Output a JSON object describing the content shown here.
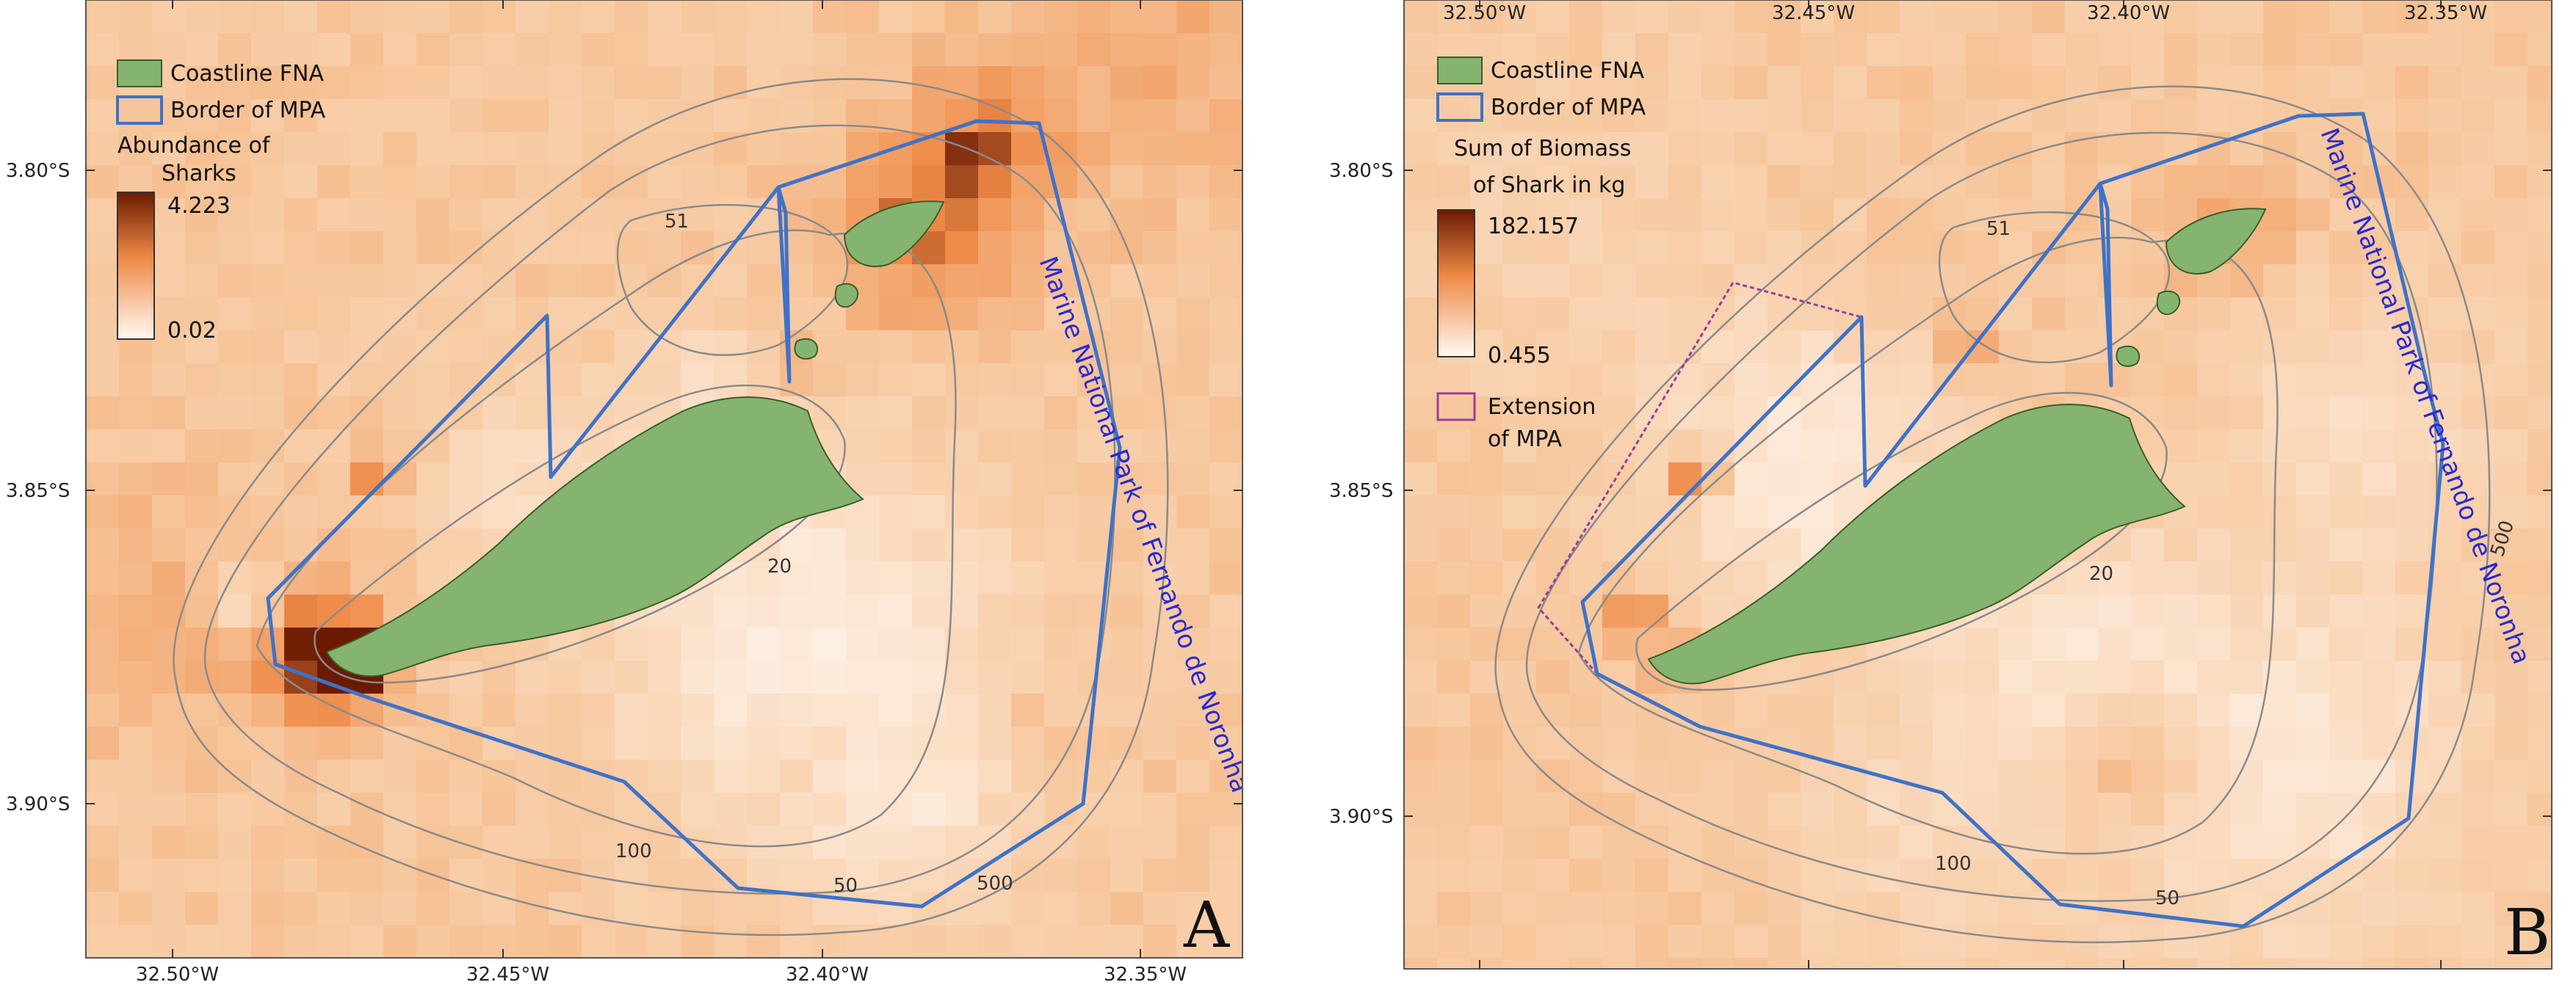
{
  "colors": {
    "sea_base": "#f7c9a0",
    "land": "#84b46f",
    "land_stroke": "#3b5d2d",
    "mpa_border": "#3f72c8",
    "extension_border": "#9b3d9b",
    "contour": "#8a8a8a",
    "ramp_low": "#fff8f2",
    "ramp_mid": "#ef8a47",
    "ramp_high": "#6b1a00"
  },
  "axes": {
    "x_ticks": [
      "32.50°W",
      "32.45°W",
      "32.40°W",
      "32.35°W"
    ],
    "y_ticks": [
      "3.80°S",
      "3.85°S",
      "3.90°S"
    ]
  },
  "contour_labels": [
    "51",
    "20",
    "100",
    "50",
    "500"
  ],
  "park_label": "Marine National Park of Fernando de Noronha",
  "panels": [
    {
      "letter": "A",
      "legend": {
        "coastline": "Coastline FNA",
        "border": "Border of MPA",
        "ramp_title_line1": "Abundance of",
        "ramp_title_line2": "Sharks",
        "ramp_max": "4.223",
        "ramp_min": "0.02"
      }
    },
    {
      "letter": "B",
      "legend": {
        "coastline": "Coastline FNA",
        "border": "Border of MPA",
        "ramp_title_line1": "Sum of Biomass",
        "ramp_title_line2": "of Shark in kg",
        "ramp_max": "182.157",
        "ramp_min": "0.455",
        "extension_line1": "Extension",
        "extension_line2": "of MPA"
      }
    }
  ]
}
